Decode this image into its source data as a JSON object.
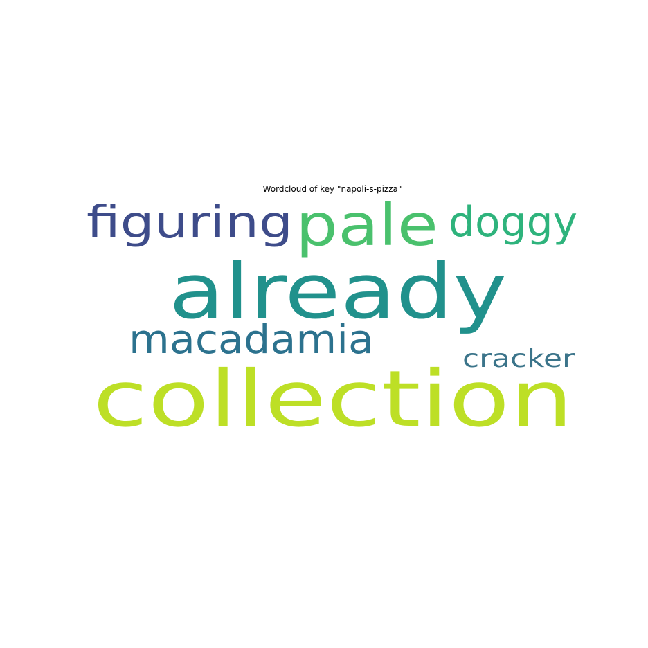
{
  "chart_data": {
    "type": "wordcloud",
    "title": "Wordcloud of key \"napoli-s-pizza\"",
    "words": [
      {
        "text": "collection",
        "color": "#bddf26"
      },
      {
        "text": "already",
        "color": "#21918c"
      },
      {
        "text": "pale",
        "color": "#4ac16d"
      },
      {
        "text": "figuring",
        "color": "#3e4c8a"
      },
      {
        "text": "doggy",
        "color": "#2eb37c"
      },
      {
        "text": "macadamia",
        "color": "#2c728e"
      },
      {
        "text": "cracker",
        "color": "#3b748a"
      }
    ]
  }
}
